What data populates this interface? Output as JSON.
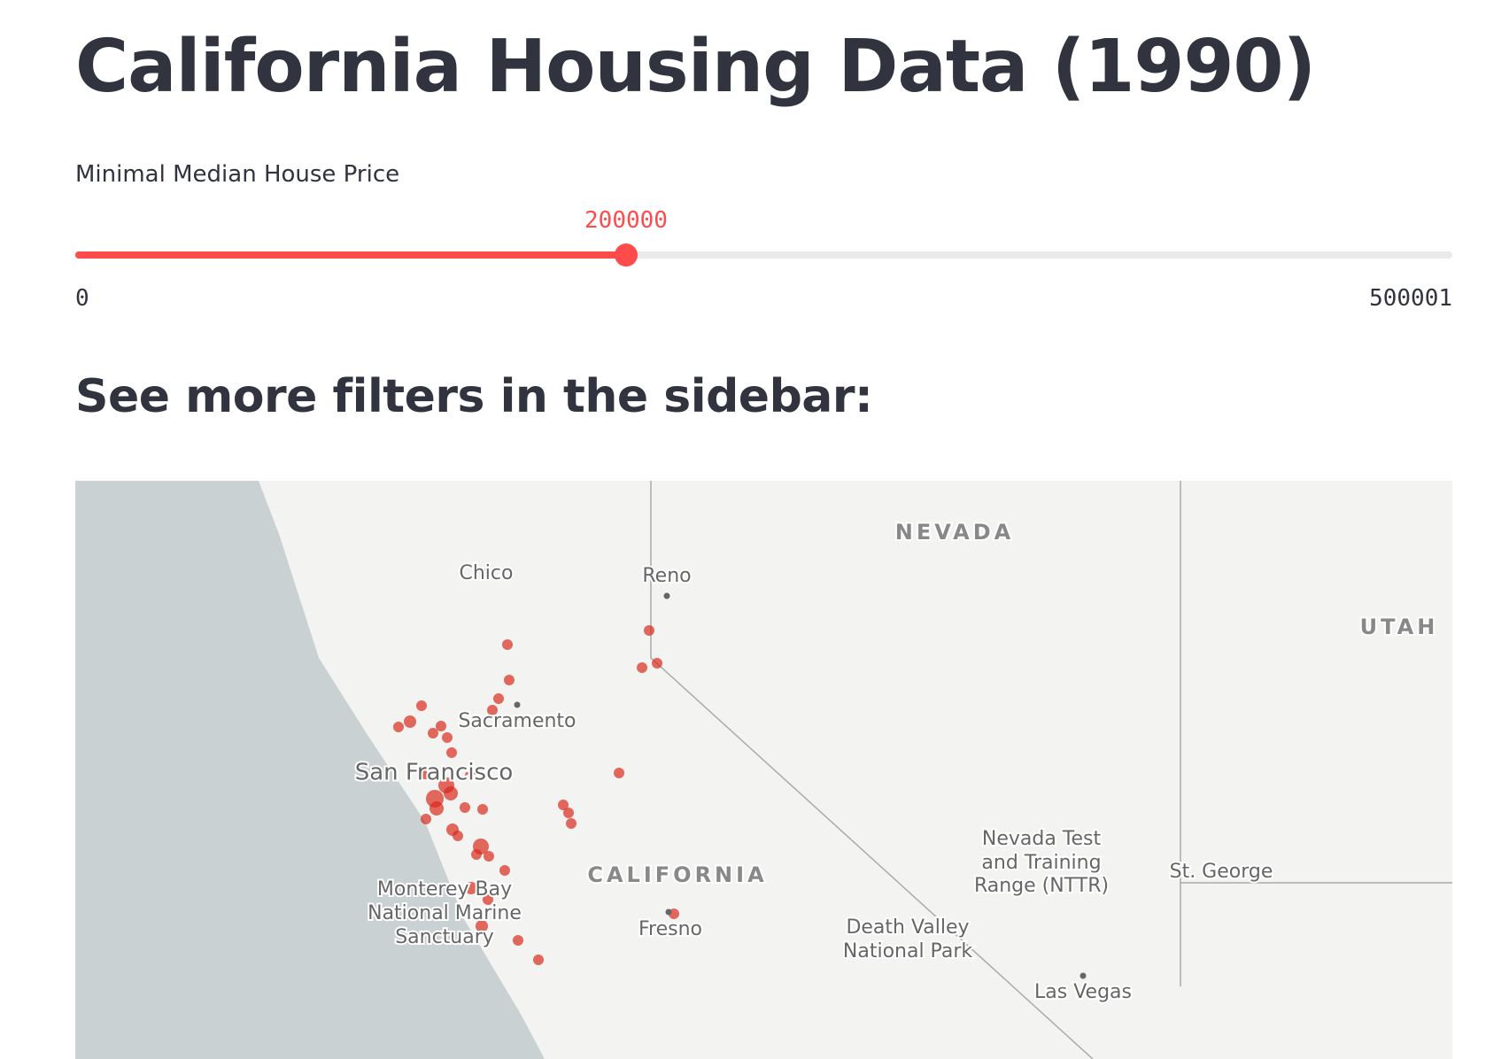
{
  "page": {
    "title": "California Housing Data (1990)",
    "slider": {
      "label": "Minimal Median House Price",
      "value": 200000,
      "min": 0,
      "max": 500001
    },
    "subheading": "See more filters in the sidebar:",
    "map": {
      "labels": [
        "NEVADA",
        "UTAH",
        "Chico",
        "Reno",
        "Sacramento",
        "San Francisco",
        "CALIFORNIA",
        "Fresno",
        "Monterey Bay",
        "National Marine",
        "Sanctuary",
        "Nevada Test",
        "and Training",
        "Range (NTTR)",
        "Death Valley",
        "National Park",
        "St. George",
        "Las Vegas"
      ]
    }
  }
}
